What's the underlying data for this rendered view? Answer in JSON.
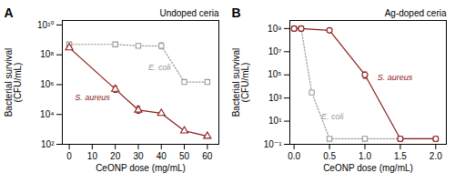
{
  "chart_data": [
    {
      "type": "line",
      "title": "Undoped ceria",
      "xlabel": "CeONP dose (mg/mL)",
      "ylabel": "Bacterial survival\n(CFU/mL)",
      "log": "y",
      "xlim": [
        -3,
        65
      ],
      "ylim": [
        100.0,
        20000000000.0
      ],
      "xticks": [
        0,
        10,
        20,
        30,
        40,
        50,
        60
      ],
      "yticks": [
        {
          "value": 100.0,
          "label": "10²"
        },
        {
          "value": 10000.0,
          "label": "10⁴"
        },
        {
          "value": 1000000.0,
          "label": "10⁶"
        },
        {
          "value": 100000000.0,
          "label": "10⁸"
        },
        {
          "value": 10000000000.0,
          "label": "10¹⁰"
        }
      ],
      "grid": false,
      "annotations": [
        {
          "text": "A"
        }
      ],
      "series": [
        {
          "name": "E. coli",
          "color": "#999999",
          "line_style": "dotted",
          "marker": "square",
          "x": [
            0,
            20,
            30,
            40,
            50,
            60
          ],
          "values": [
            500000000.0,
            500000000.0,
            400000000.0,
            400000000.0,
            1500000.0,
            1500000.0
          ],
          "yerr_lo": [
            0,
            0,
            0,
            150000000.0,
            0,
            0
          ],
          "yerr_hi": [
            0,
            0,
            0,
            250000000.0,
            0,
            0
          ]
        },
        {
          "name": "S. aureus",
          "color": "#8B1A1A",
          "line_style": "solid",
          "marker": "triangle",
          "x": [
            0,
            20,
            30,
            40,
            50,
            60
          ],
          "values": [
            300000000.0,
            500000.0,
            20000.0,
            12000.0,
            800.0,
            350.0
          ],
          "yerr_lo": [
            0,
            200000.0,
            8000.0,
            0,
            0,
            0
          ],
          "yerr_hi": [
            0,
            300000.0,
            15000.0,
            0,
            0,
            0
          ]
        }
      ]
    },
    {
      "type": "line",
      "title": "Ag-doped ceria",
      "xlabel": "CeONP dose (mg/mL)",
      "ylabel": "Bacterial survival\n(CFU/mL)",
      "log": "y",
      "xlim": [
        -0.06,
        2.15
      ],
      "ylim": [
        0.1,
        5000000000.0
      ],
      "xticks": [
        {
          "value": 0,
          "label": "0.0"
        },
        0.5,
        {
          "value": 1,
          "label": "1.0"
        },
        1.5,
        {
          "value": 2,
          "label": "2.0"
        }
      ],
      "yticks": [
        {
          "value": 0.1,
          "label": "10⁻¹"
        },
        {
          "value": 10.0,
          "label": "10¹"
        },
        {
          "value": 1000.0,
          "label": "10³"
        },
        {
          "value": 100000.0,
          "label": "10⁵"
        },
        {
          "value": 10000000.0,
          "label": "10⁷"
        },
        {
          "value": 1000000000.0,
          "label": "10⁹"
        }
      ],
      "grid": false,
      "annotations": [
        {
          "text": "B"
        }
      ],
      "series": [
        {
          "name": "E. coli",
          "color": "#999999",
          "line_style": "dotted",
          "marker": "square",
          "x": [
            0,
            0.1,
            0.25,
            0.5,
            1.0,
            1.5,
            2.0
          ],
          "values": [
            1000000000.0,
            1000000000.0,
            3000.0,
            0.3,
            0.3,
            0.3,
            0.3
          ],
          "yerr_lo": [
            0,
            0,
            0,
            0,
            0,
            0,
            0
          ],
          "yerr_hi": [
            0,
            0,
            0,
            0,
            0,
            0,
            0
          ]
        },
        {
          "name": "S. aureus",
          "color": "#8B1A1A",
          "line_style": "solid",
          "marker": "circle",
          "x": [
            0,
            0.1,
            0.5,
            1.0,
            1.5,
            2.0
          ],
          "values": [
            1000000000.0,
            1000000000.0,
            700000000.0,
            100000.0,
            0.3,
            0.3
          ],
          "yerr_lo": [
            0,
            0,
            200000000.0,
            50000.0,
            0,
            0
          ],
          "yerr_hi": [
            0,
            0,
            400000000.0,
            80000.0,
            0,
            0
          ]
        }
      ]
    }
  ]
}
